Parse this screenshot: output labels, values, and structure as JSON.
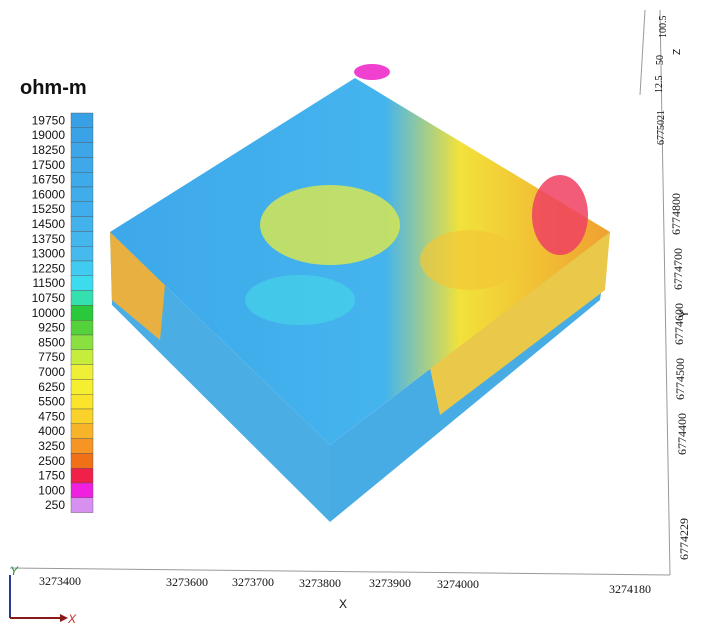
{
  "legend": {
    "title": "ohm-m",
    "labels": [
      19750,
      19000,
      18250,
      17500,
      16750,
      16000,
      15250,
      14500,
      13750,
      13000,
      12250,
      11500,
      10750,
      10000,
      9250,
      8500,
      7750,
      7000,
      6250,
      5500,
      4750,
      4000,
      3250,
      2500,
      1750,
      1000,
      250
    ],
    "colors": [
      "#3aa0e6",
      "#3aa2e6",
      "#3ca6e8",
      "#3ea8e8",
      "#3eaaea",
      "#40acea",
      "#40aeec",
      "#42b2ec",
      "#44b6ee",
      "#46baee",
      "#40ccf0",
      "#3cdcee",
      "#34e0b0",
      "#2cc83c",
      "#54d23c",
      "#8ae040",
      "#c6ec3c",
      "#eef038",
      "#f6ee30",
      "#fae42c",
      "#fad22a",
      "#f8b428",
      "#f69424",
      "#f07018",
      "#f02048",
      "#f020e0",
      "#d890f0"
    ]
  },
  "axes": {
    "x": {
      "label": "X",
      "ticks": [
        3273400,
        3273600,
        3273700,
        3273800,
        3273900,
        3274000,
        3274180
      ]
    },
    "y": {
      "label": "Y",
      "ticks": [
        6774229,
        6774400,
        6774500,
        6774600,
        6774700,
        6774800,
        6775021
      ]
    },
    "z": {
      "label": "Z",
      "ticks": [
        12.5,
        50,
        100.5
      ]
    },
    "triad": {
      "x": "X",
      "y": "Y"
    }
  }
}
